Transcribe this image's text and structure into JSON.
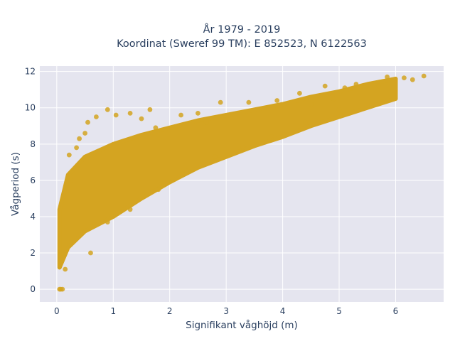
{
  "chart_data": {
    "type": "scatter",
    "title_line1": "År 1979 - 2019",
    "title_line2": "Koordinat (Sweref 99 TM): E 852523, N 6122563",
    "xlabel": "Signifikant våghöjd (m)",
    "ylabel": "Vågperiod (s)",
    "xlim": [
      -0.3,
      6.85
    ],
    "ylim": [
      -0.7,
      12.3
    ],
    "x_ticks": [
      0,
      1,
      2,
      3,
      4,
      5,
      6
    ],
    "y_ticks": [
      0,
      2,
      4,
      6,
      8,
      10,
      12
    ],
    "grid": true,
    "legend": "none",
    "colors": {
      "marker": "#d4a421",
      "plot_bg": "#e5e5ef",
      "grid": "#ffffff",
      "text": "#2a3f5f"
    },
    "trend": {
      "x": [
        0.05,
        0.2,
        0.5,
        1.0,
        1.5,
        2.0,
        2.5,
        3.0,
        3.5,
        4.0,
        4.5,
        5.0,
        5.5,
        6.0
      ],
      "upper_T": [
        4.4,
        6.3,
        7.3,
        8.0,
        8.5,
        8.9,
        9.3,
        9.6,
        9.9,
        10.2,
        10.6,
        10.9,
        11.3,
        11.6
      ],
      "lower_T": [
        1.2,
        2.3,
        3.2,
        4.0,
        5.0,
        5.9,
        6.7,
        7.3,
        7.9,
        8.4,
        9.0,
        9.5,
        10.0,
        10.5
      ]
    },
    "points": [
      [
        0.05,
        0.0
      ],
      [
        0.07,
        0.0
      ],
      [
        0.1,
        0.0
      ],
      [
        0.22,
        7.4
      ],
      [
        0.35,
        7.8
      ],
      [
        0.5,
        8.6
      ],
      [
        0.55,
        9.2
      ],
      [
        0.7,
        9.5
      ],
      [
        0.9,
        9.9
      ],
      [
        1.05,
        9.6
      ],
      [
        1.3,
        9.7
      ],
      [
        1.65,
        9.9
      ],
      [
        1.75,
        8.9
      ],
      [
        2.2,
        9.6
      ],
      [
        2.5,
        9.7
      ],
      [
        2.65,
        9.2
      ],
      [
        2.9,
        10.3
      ],
      [
        3.4,
        10.3
      ],
      [
        3.9,
        10.4
      ],
      [
        4.3,
        10.8
      ],
      [
        4.5,
        10.2
      ],
      [
        4.75,
        11.2
      ],
      [
        4.9,
        10.5
      ],
      [
        5.1,
        11.1
      ],
      [
        5.3,
        11.3
      ],
      [
        5.45,
        11.1
      ],
      [
        5.7,
        11.2
      ],
      [
        5.85,
        11.7
      ],
      [
        5.95,
        11.0
      ],
      [
        6.15,
        11.65
      ],
      [
        6.3,
        11.55
      ],
      [
        6.5,
        11.75
      ],
      [
        0.6,
        2.0
      ],
      [
        0.9,
        3.7
      ],
      [
        1.3,
        4.4
      ],
      [
        1.8,
        5.5
      ],
      [
        2.3,
        6.5
      ],
      [
        2.8,
        7.3
      ],
      [
        3.3,
        7.8
      ],
      [
        3.8,
        8.4
      ],
      [
        4.4,
        9.2
      ],
      [
        5.0,
        9.9
      ],
      [
        0.15,
        1.1
      ],
      [
        0.25,
        6.0
      ],
      [
        0.4,
        8.3
      ],
      [
        1.5,
        9.4
      ]
    ]
  }
}
